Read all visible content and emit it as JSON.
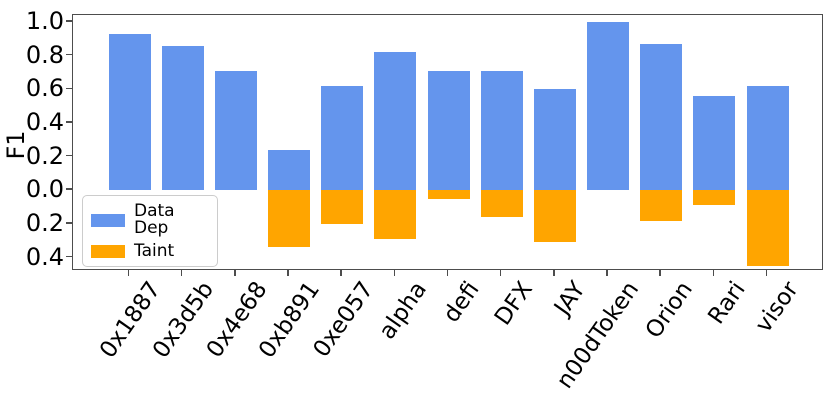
{
  "chart_data": {
    "type": "bar",
    "title": "",
    "xlabel": "",
    "ylabel": "F1",
    "grid": false,
    "legend_position": "lower left",
    "orientation": "vertical diverging from zero (Data Dep up, Taint down)",
    "categories": [
      "0x1887",
      "0x3d5b",
      "0x4e68",
      "0xb891",
      "0xe057",
      "alpha",
      "defi",
      "DFX",
      "JAY",
      "n00dToken",
      "Orion",
      "Rari",
      "visor"
    ],
    "series": [
      {
        "name": "Data Dep",
        "color": "#6495ED",
        "values": [
          0.93,
          0.86,
          0.71,
          0.24,
          0.62,
          0.82,
          0.71,
          0.71,
          0.6,
          1.0,
          0.87,
          0.56,
          0.62
        ]
      },
      {
        "name": "Taint",
        "color": "#FFA500",
        "values": [
          0.0,
          0.0,
          0.0,
          -0.34,
          -0.2,
          -0.29,
          -0.05,
          -0.16,
          -0.31,
          0.0,
          -0.18,
          -0.09,
          -0.45
        ]
      }
    ],
    "yticks": [
      {
        "value": 1.0,
        "label": "1.0"
      },
      {
        "value": 0.8,
        "label": "0.8"
      },
      {
        "value": 0.6,
        "label": "0.6"
      },
      {
        "value": 0.4,
        "label": "0.4"
      },
      {
        "value": 0.2,
        "label": "0.2"
      },
      {
        "value": 0.0,
        "label": "0.0"
      },
      {
        "value": -0.2,
        "label": "0.2"
      },
      {
        "value": -0.4,
        "label": "0.4"
      }
    ],
    "ylim": [
      -0.48,
      1.042
    ]
  },
  "colors": {
    "background": "#ffffff",
    "spine": "#4d4d4d",
    "text": "#000000"
  }
}
